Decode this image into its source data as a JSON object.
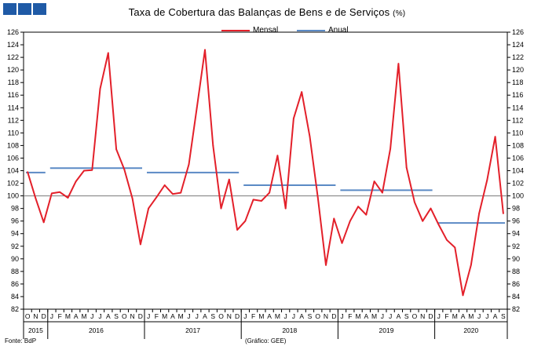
{
  "title": "Taxa de Cobertura das Balanças de Bens e de Serviços",
  "title_unit": "(%)",
  "legend": [
    {
      "label": "Mensal",
      "color": "#e3202a"
    },
    {
      "label": "Anual",
      "color": "#5b8ac5"
    }
  ],
  "source": "Fonte: BdP",
  "graph_credit": "(Gráfico: GEE)",
  "chart_data": {
    "type": "line",
    "ylim": [
      82,
      126
    ],
    "yticks": [
      82,
      84,
      86,
      88,
      90,
      92,
      94,
      96,
      98,
      100,
      102,
      104,
      106,
      108,
      110,
      112,
      114,
      116,
      118,
      120,
      122,
      124,
      126
    ],
    "reference_line": 100,
    "grid": false,
    "axis_both_sides": true,
    "month_labels": [
      "O",
      "N",
      "D",
      "J",
      "F",
      "M",
      "A",
      "M",
      "J",
      "J",
      "A",
      "S",
      "O",
      "N",
      "D",
      "J",
      "F",
      "M",
      "A",
      "M",
      "J",
      "J",
      "A",
      "S",
      "O",
      "N",
      "D",
      "J",
      "F",
      "M",
      "A",
      "M",
      "J",
      "J",
      "A",
      "S",
      "O",
      "N",
      "D",
      "J",
      "F",
      "M",
      "A",
      "M",
      "J",
      "J",
      "A",
      "S",
      "O",
      "N",
      "D",
      "J",
      "F",
      "M",
      "A",
      "M",
      "J",
      "J",
      "A",
      "S"
    ],
    "years": [
      {
        "label": "2015",
        "start": 0,
        "count": 3
      },
      {
        "label": "2016",
        "start": 3,
        "count": 12
      },
      {
        "label": "2017",
        "start": 15,
        "count": 12
      },
      {
        "label": "2018",
        "start": 27,
        "count": 12
      },
      {
        "label": "2019",
        "start": 39,
        "count": 12
      },
      {
        "label": "2020",
        "start": 51,
        "count": 9
      }
    ],
    "series": [
      {
        "name": "Mensal",
        "color": "#e3202a",
        "values": [
          103.8,
          99.6,
          95.8,
          100.4,
          100.6,
          99.7,
          102.3,
          104.0,
          104.1,
          117.0,
          122.7,
          107.4,
          104.2,
          99.6,
          92.3,
          98.0,
          99.8,
          101.7,
          100.3,
          100.5,
          105.0,
          114.0,
          123.2,
          108.0,
          98.0,
          102.6,
          94.6,
          96.0,
          99.4,
          99.2,
          100.5,
          106.4,
          98.0,
          112.3,
          116.5,
          109.4,
          99.8,
          89.0,
          96.4,
          92.5,
          96.0,
          98.3,
          97.0,
          102.3,
          100.5,
          107.5,
          121.0,
          104.5,
          99.0,
          96.0,
          98.0,
          95.4,
          93.0,
          91.8,
          84.2,
          89.0,
          97.2,
          102.5,
          109.4,
          97.2
        ]
      },
      {
        "name": "Anual",
        "color": "#5b8ac5",
        "segments": [
          {
            "year": "2015",
            "value": 103.7
          },
          {
            "year": "2016",
            "value": 104.4
          },
          {
            "year": "2017",
            "value": 103.7
          },
          {
            "year": "2018",
            "value": 101.7
          },
          {
            "year": "2019",
            "value": 100.9
          },
          {
            "year": "2020",
            "value": 95.7
          }
        ]
      }
    ]
  }
}
